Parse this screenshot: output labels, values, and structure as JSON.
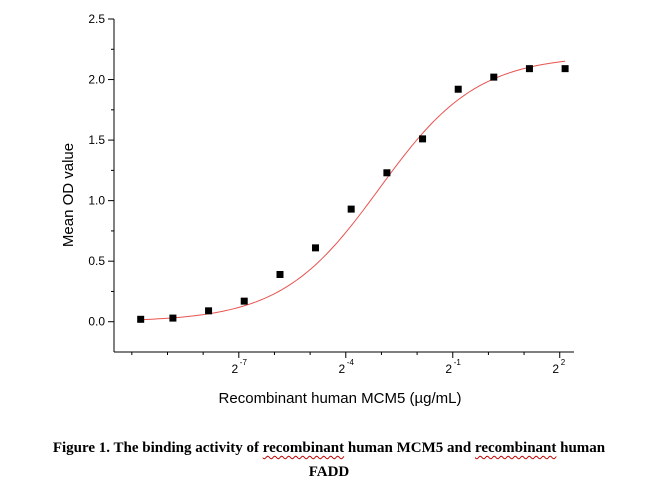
{
  "chart_data": {
    "type": "scatter",
    "xlabel": "Recombinant human MCM5 (µg/mL)",
    "ylabel": "Mean OD value",
    "x_scale": "log2",
    "xlim": [
      -10.5,
      2.4
    ],
    "ylim": [
      -0.25,
      2.5
    ],
    "y_ticks": [
      "0.0",
      "0.5",
      "1.0",
      "1.5",
      "2.0",
      "2.5"
    ],
    "x_tick_labels": [
      {
        "base": "2",
        "exp": "-7"
      },
      {
        "base": "2",
        "exp": "-4"
      },
      {
        "base": "2",
        "exp": "-1"
      },
      {
        "base": "2",
        "exp": "2"
      }
    ],
    "x_minor_exponents": [
      -10,
      -9,
      -8,
      -7,
      -6,
      -5,
      -4,
      -3,
      -2,
      -1,
      0,
      1,
      2
    ],
    "x_major_exponents": [
      -7,
      -4,
      -1,
      2
    ],
    "series": [
      {
        "marker": "square",
        "color": "#000000",
        "x": [
          0.00116,
          0.00217,
          0.00434,
          0.00868,
          0.0174,
          0.0347,
          0.0694,
          0.139,
          0.278,
          0.556,
          1.11,
          2.22,
          4.44
        ],
        "y": [
          0.02,
          0.03,
          0.09,
          0.17,
          0.39,
          0.61,
          0.93,
          1.23,
          1.51,
          1.92,
          2.02,
          2.09,
          2.09
        ]
      }
    ],
    "fit_curve": {
      "color": "#e8534f",
      "model": "4PL"
    },
    "grid": false
  },
  "caption": {
    "line1_prefix": "Figure 1. The binding activity of ",
    "line1_word1": "recombinant",
    "line1_middle": " human MCM5 and ",
    "line1_word2": "recombinant",
    "line1_suffix": " human",
    "line2": "FADD"
  }
}
